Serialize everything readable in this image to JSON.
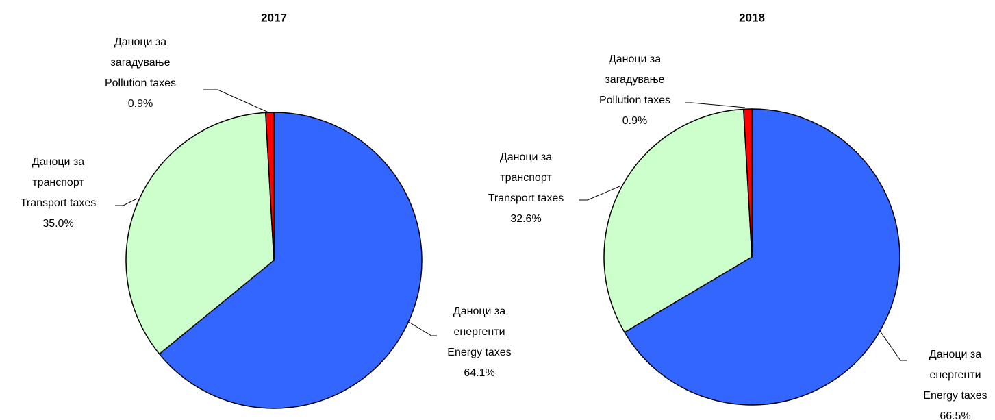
{
  "chart_data": [
    {
      "type": "pie",
      "title": "2017",
      "categories": [
        [
          "Даноци за",
          "енергенти",
          "Energy taxes"
        ],
        [
          "Даноци  за",
          "транспорт",
          "Transport taxes"
        ],
        [
          "Даноци за",
          "загадување",
          "Pollution taxes"
        ]
      ],
      "values": [
        64.1,
        35.0,
        0.9
      ],
      "value_labels": [
        "64.1%",
        "35.0%",
        "0.9%"
      ],
      "colors": [
        "#3366ff",
        "#ccffcc",
        "#ff0000"
      ]
    },
    {
      "type": "pie",
      "title": "2018",
      "categories": [
        [
          "Даноци за",
          "енергенти",
          "Energy taxes"
        ],
        [
          "Даноци  за",
          "транспорт",
          "Transport taxes"
        ],
        [
          "Даноци за",
          "загадување",
          "Pollution taxes"
        ]
      ],
      "values": [
        66.5,
        32.6,
        0.9
      ],
      "value_labels": [
        "66.5%",
        "32.6%",
        "0.9%"
      ],
      "colors": [
        "#3366ff",
        "#ccffcc",
        "#ff0000"
      ]
    }
  ]
}
